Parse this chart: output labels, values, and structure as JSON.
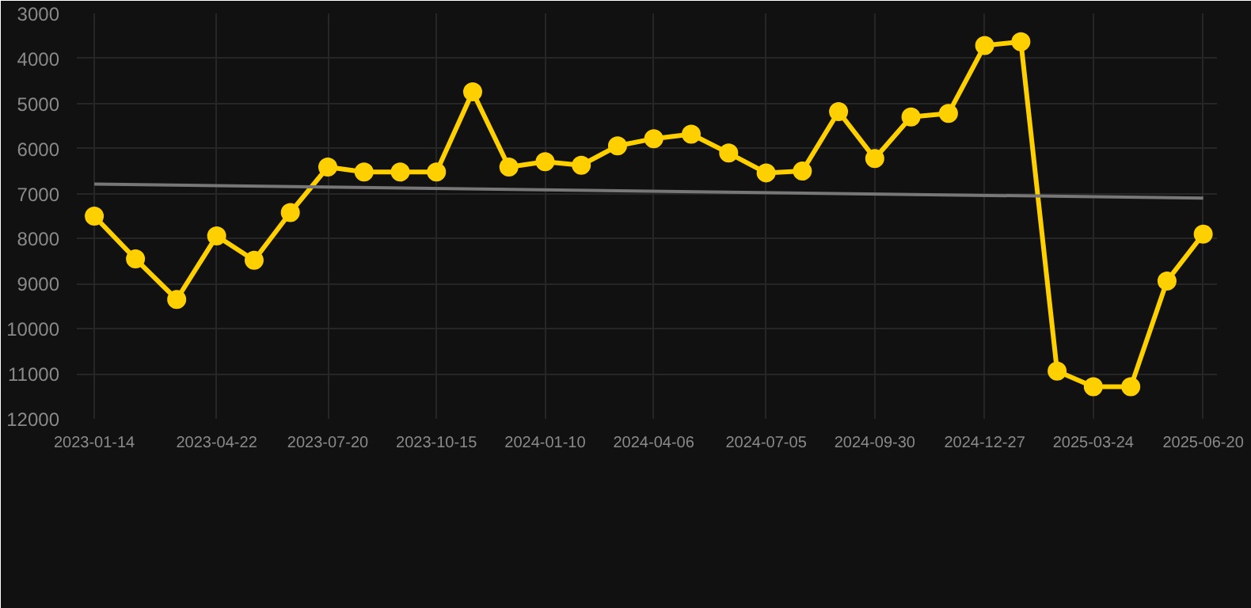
{
  "chart_data": {
    "type": "line",
    "x": [
      "2023-01-14",
      "2023-02-16",
      "2023-03-21",
      "2023-04-22",
      "2023-05-22",
      "2023-06-20",
      "2023-07-20",
      "2023-08-18",
      "2023-09-16",
      "2023-10-15",
      "2023-11-13",
      "2023-12-12",
      "2024-01-10",
      "2024-02-08",
      "2024-03-08",
      "2024-04-06",
      "2024-05-06",
      "2024-06-05",
      "2024-07-05",
      "2024-08-03",
      "2024-09-01",
      "2024-09-30",
      "2024-10-29",
      "2024-11-28",
      "2024-12-27",
      "2025-01-25",
      "2025-02-23",
      "2025-03-24",
      "2025-04-23",
      "2025-05-22",
      "2025-06-20"
    ],
    "series": [
      {
        "color": "#ffd000",
        "marker": "circle",
        "values": [
          7500,
          8450,
          9350,
          7940,
          8480,
          7420,
          6410,
          6520,
          6520,
          6520,
          4740,
          6410,
          6290,
          6370,
          5940,
          5780,
          5680,
          6100,
          6540,
          6500,
          5180,
          6220,
          5300,
          5220,
          3710,
          3630,
          10940,
          11290,
          11290,
          8940,
          7900
        ]
      },
      {
        "type": "line",
        "color": "#777777",
        "marker": "none",
        "x": [
          "2023-01-14",
          "2025-06-20"
        ],
        "values": [
          6790,
          7100
        ]
      }
    ],
    "xlim": [
      "2022-12-31",
      "2025-07-01"
    ],
    "xticks": [
      "2023-01-14",
      "2023-04-22",
      "2023-07-20",
      "2023-10-15",
      "2024-01-10",
      "2024-04-06",
      "2024-07-05",
      "2024-09-30",
      "2024-12-27",
      "2025-03-24",
      "2025-06-20"
    ],
    "ylim": [
      12000,
      3000
    ],
    "yticks": [
      3000,
      4000,
      5000,
      6000,
      7000,
      8000,
      9000,
      10000,
      11000,
      12000
    ],
    "grid": true
  }
}
